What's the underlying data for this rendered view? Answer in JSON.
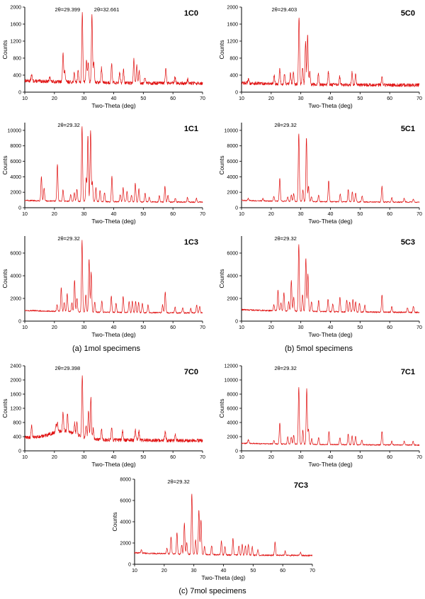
{
  "captions": {
    "a": "(a) 1mol specimens",
    "b": "(b) 5mol specimens",
    "c": "(c) 7mol specimens"
  },
  "colors": {
    "trace": "#e01010",
    "axis": "#000000"
  },
  "chart_data": [
    {
      "type": "line",
      "sample": "1C0",
      "xlabel": "Two-Theta (deg)",
      "ylabel": "Counts",
      "xlim": [
        10,
        70
      ],
      "ylim": [
        0,
        2000
      ],
      "yticks": [
        0,
        400,
        800,
        1200,
        1600,
        2000
      ],
      "xticks": [
        10,
        20,
        30,
        40,
        50,
        60,
        70
      ],
      "baseline": 200,
      "noise": 40,
      "annotations": [
        "2θ=29.399",
        "2θ=32.661"
      ],
      "peaks": [
        [
          12.3,
          150
        ],
        [
          18.5,
          120
        ],
        [
          22.9,
          700
        ],
        [
          23.5,
          250
        ],
        [
          26.7,
          200
        ],
        [
          28.0,
          300
        ],
        [
          29.4,
          1620
        ],
        [
          30.8,
          550
        ],
        [
          31.4,
          450
        ],
        [
          32.66,
          1600
        ],
        [
          33.3,
          500
        ],
        [
          35.9,
          350
        ],
        [
          39.3,
          450
        ],
        [
          42.0,
          250
        ],
        [
          43.3,
          300
        ],
        [
          46.8,
          550
        ],
        [
          47.8,
          400
        ],
        [
          48.6,
          300
        ],
        [
          50.5,
          150
        ],
        [
          57.6,
          350
        ],
        [
          60.7,
          150
        ],
        [
          65.0,
          100
        ]
      ]
    },
    {
      "type": "line",
      "sample": "5C0",
      "xlabel": "Two-Theta (deg)",
      "ylabel": "Counts",
      "xlim": [
        10,
        70
      ],
      "ylim": [
        0,
        2000
      ],
      "yticks": [
        0,
        400,
        800,
        1200,
        1600,
        2000
      ],
      "xticks": [
        10,
        20,
        30,
        40,
        50,
        60,
        70
      ],
      "baseline": 160,
      "noise": 40,
      "annotations": [
        "2θ=29.403"
      ],
      "peaks": [
        [
          12.3,
          100
        ],
        [
          21.0,
          200
        ],
        [
          22.9,
          350
        ],
        [
          24.5,
          250
        ],
        [
          26.5,
          250
        ],
        [
          27.5,
          300
        ],
        [
          29.4,
          1570
        ],
        [
          30.6,
          400
        ],
        [
          31.6,
          1000
        ],
        [
          32.3,
          1150
        ],
        [
          33.0,
          300
        ],
        [
          35.9,
          250
        ],
        [
          39.3,
          300
        ],
        [
          43.1,
          200
        ],
        [
          47.3,
          300
        ],
        [
          48.5,
          250
        ],
        [
          57.4,
          200
        ]
      ]
    },
    {
      "type": "line",
      "sample": "1C1",
      "xlabel": "Two-Theta (deg)",
      "ylabel": "Counts",
      "xlim": [
        10,
        70
      ],
      "ylim": [
        0,
        11000
      ],
      "yticks": [
        0,
        2000,
        4000,
        6000,
        8000,
        10000
      ],
      "xticks": [
        10,
        20,
        30,
        40,
        50,
        60,
        70
      ],
      "baseline": 700,
      "noise": 80,
      "annotations": [
        "2θ=29.32"
      ],
      "peaks": [
        [
          15.6,
          3100
        ],
        [
          16.5,
          1600
        ],
        [
          21.0,
          4800
        ],
        [
          22.9,
          1500
        ],
        [
          25.5,
          900
        ],
        [
          26.7,
          1100
        ],
        [
          27.6,
          1600
        ],
        [
          29.32,
          9700
        ],
        [
          30.7,
          3000
        ],
        [
          31.3,
          8600
        ],
        [
          32.2,
          9200
        ],
        [
          32.8,
          2500
        ],
        [
          34.0,
          1800
        ],
        [
          35.4,
          1500
        ],
        [
          36.9,
          1200
        ],
        [
          39.4,
          3300
        ],
        [
          42.2,
          900
        ],
        [
          43.2,
          1800
        ],
        [
          44.5,
          1400
        ],
        [
          46.0,
          900
        ],
        [
          47.3,
          2400
        ],
        [
          48.5,
          1700
        ],
        [
          50.6,
          1100
        ],
        [
          52.0,
          600
        ],
        [
          55.4,
          800
        ],
        [
          57.3,
          2000
        ],
        [
          58.3,
          900
        ],
        [
          60.8,
          500
        ],
        [
          64.9,
          600
        ],
        [
          67.9,
          500
        ]
      ]
    },
    {
      "type": "line",
      "sample": "5C1",
      "xlabel": "Two-Theta (deg)",
      "ylabel": "Counts",
      "xlim": [
        10,
        70
      ],
      "ylim": [
        0,
        11000
      ],
      "yticks": [
        0,
        2000,
        4000,
        6000,
        8000,
        10000
      ],
      "xticks": [
        10,
        20,
        30,
        40,
        50,
        60,
        70
      ],
      "baseline": 700,
      "noise": 70,
      "annotations": [
        "2θ=29.32"
      ],
      "peaks": [
        [
          12.3,
          300
        ],
        [
          17.2,
          300
        ],
        [
          20.9,
          600
        ],
        [
          22.9,
          3000
        ],
        [
          25.6,
          600
        ],
        [
          26.8,
          800
        ],
        [
          27.6,
          1000
        ],
        [
          29.32,
          8800
        ],
        [
          30.7,
          1500
        ],
        [
          31.9,
          8300
        ],
        [
          32.6,
          2000
        ],
        [
          33.6,
          600
        ],
        [
          36.0,
          800
        ],
        [
          39.4,
          2700
        ],
        [
          43.3,
          1000
        ],
        [
          46.0,
          1600
        ],
        [
          47.4,
          1300
        ],
        [
          48.5,
          1200
        ],
        [
          50.7,
          800
        ],
        [
          57.4,
          2000
        ],
        [
          60.7,
          600
        ],
        [
          64.9,
          500
        ],
        [
          68.0,
          400
        ]
      ]
    },
    {
      "type": "line",
      "sample": "1C3",
      "xlabel": "Two-Theta (deg)",
      "ylabel": "Counts",
      "xlim": [
        10,
        70
      ],
      "ylim": [
        0,
        7500
      ],
      "yticks": [
        0,
        2000,
        4000,
        6000
      ],
      "xticks": [
        10,
        20,
        30,
        40,
        50,
        60,
        70
      ],
      "baseline": 700,
      "noise": 60,
      "annotations": [
        "2θ=29.32"
      ],
      "peaks": [
        [
          20.9,
          600
        ],
        [
          22.3,
          2100
        ],
        [
          23.3,
          800
        ],
        [
          24.3,
          1600
        ],
        [
          25.9,
          800
        ],
        [
          26.8,
          2800
        ],
        [
          27.6,
          1200
        ],
        [
          29.32,
          6300
        ],
        [
          30.6,
          1500
        ],
        [
          31.7,
          4700
        ],
        [
          32.4,
          3500
        ],
        [
          33.6,
          900
        ],
        [
          36.0,
          1000
        ],
        [
          39.2,
          1400
        ],
        [
          40.8,
          800
        ],
        [
          43.2,
          1400
        ],
        [
          45.2,
          1000
        ],
        [
          46.3,
          1000
        ],
        [
          47.4,
          1000
        ],
        [
          48.4,
          900
        ],
        [
          49.7,
          800
        ],
        [
          51.6,
          700
        ],
        [
          56.5,
          700
        ],
        [
          57.4,
          1800
        ],
        [
          60.7,
          500
        ],
        [
          63.3,
          400
        ],
        [
          66.0,
          400
        ],
        [
          68.0,
          700
        ],
        [
          69.0,
          600
        ]
      ]
    },
    {
      "type": "line",
      "sample": "5C3",
      "xlabel": "Two-Theta (deg)",
      "ylabel": "Counts",
      "xlim": [
        10,
        70
      ],
      "ylim": [
        0,
        7500
      ],
      "yticks": [
        0,
        2000,
        4000,
        6000
      ],
      "xticks": [
        10,
        20,
        30,
        40,
        50,
        60,
        70
      ],
      "baseline": 750,
      "noise": 60,
      "annotations": [
        "2θ=29.32"
      ],
      "peaks": [
        [
          20.9,
          500
        ],
        [
          22.3,
          1800
        ],
        [
          23.3,
          700
        ],
        [
          24.3,
          1600
        ],
        [
          25.9,
          800
        ],
        [
          26.8,
          2700
        ],
        [
          27.6,
          1200
        ],
        [
          29.32,
          5900
        ],
        [
          30.6,
          1500
        ],
        [
          31.7,
          4700
        ],
        [
          32.4,
          3300
        ],
        [
          33.6,
          900
        ],
        [
          36.0,
          1000
        ],
        [
          39.2,
          1100
        ],
        [
          40.8,
          700
        ],
        [
          43.2,
          1300
        ],
        [
          45.5,
          1100
        ],
        [
          46.5,
          900
        ],
        [
          47.6,
          1100
        ],
        [
          48.5,
          900
        ],
        [
          49.8,
          800
        ],
        [
          51.6,
          600
        ],
        [
          57.4,
          1500
        ],
        [
          60.7,
          500
        ],
        [
          66.0,
          400
        ],
        [
          68.0,
          500
        ]
      ]
    },
    {
      "type": "line",
      "sample": "7C0",
      "xlabel": "Two-Theta (deg)",
      "ylabel": "Counts",
      "xlim": [
        10,
        70
      ],
      "ylim": [
        0,
        2400
      ],
      "yticks": [
        0,
        400,
        800,
        1200,
        1600,
        2000,
        2400
      ],
      "xticks": [
        10,
        20,
        30,
        40,
        50,
        60,
        70
      ],
      "baseline": 280,
      "noise": 50,
      "hump": [
        23,
        220
      ],
      "annotations": [
        "2θ=29.398"
      ],
      "peaks": [
        [
          12.3,
          350
        ],
        [
          20.5,
          200
        ],
        [
          21.0,
          250
        ],
        [
          22.9,
          550
        ],
        [
          24.4,
          500
        ],
        [
          26.8,
          300
        ],
        [
          27.6,
          350
        ],
        [
          29.398,
          1750
        ],
        [
          30.7,
          350
        ],
        [
          31.5,
          800
        ],
        [
          32.3,
          1150
        ],
        [
          33.1,
          300
        ],
        [
          35.9,
          300
        ],
        [
          39.3,
          350
        ],
        [
          43.0,
          250
        ],
        [
          47.3,
          300
        ],
        [
          48.5,
          250
        ],
        [
          57.4,
          250
        ],
        [
          60.8,
          150
        ]
      ]
    },
    {
      "type": "line",
      "sample": "7C1",
      "xlabel": "Two-Theta (deg)",
      "ylabel": "Counts",
      "xlim": [
        10,
        70
      ],
      "ylim": [
        0,
        12000
      ],
      "yticks": [
        0,
        2000,
        4000,
        6000,
        8000,
        10000,
        12000
      ],
      "xticks": [
        10,
        20,
        30,
        40,
        50,
        60,
        70
      ],
      "baseline": 800,
      "noise": 80,
      "annotations": [
        "2θ=29.32"
      ],
      "peaks": [
        [
          12.3,
          500
        ],
        [
          20.9,
          500
        ],
        [
          22.9,
          3000
        ],
        [
          25.6,
          1000
        ],
        [
          26.8,
          1000
        ],
        [
          27.6,
          1300
        ],
        [
          29.32,
          8000
        ],
        [
          30.7,
          2000
        ],
        [
          32.0,
          7800
        ],
        [
          32.6,
          2200
        ],
        [
          33.7,
          800
        ],
        [
          36.0,
          1000
        ],
        [
          39.5,
          1800
        ],
        [
          43.2,
          1000
        ],
        [
          46.0,
          1500
        ],
        [
          47.3,
          1300
        ],
        [
          48.5,
          1200
        ],
        [
          50.6,
          700
        ],
        [
          57.4,
          1900
        ],
        [
          60.7,
          500
        ],
        [
          64.9,
          500
        ],
        [
          67.9,
          500
        ]
      ]
    },
    {
      "type": "line",
      "sample": "7C3",
      "xlabel": "Two-Theta (deg)",
      "ylabel": "Counts",
      "xlim": [
        10,
        70
      ],
      "ylim": [
        0,
        8000
      ],
      "yticks": [
        0,
        2000,
        4000,
        6000,
        8000
      ],
      "xticks": [
        10,
        20,
        30,
        40,
        50,
        60,
        70
      ],
      "baseline": 800,
      "noise": 70,
      "annotations": [
        "2θ=29.32"
      ],
      "peaks": [
        [
          12.3,
          300
        ],
        [
          20.9,
          500
        ],
        [
          22.3,
          1600
        ],
        [
          24.3,
          2000
        ],
        [
          25.9,
          900
        ],
        [
          26.8,
          2900
        ],
        [
          27.6,
          1100
        ],
        [
          29.32,
          5700
        ],
        [
          30.6,
          1400
        ],
        [
          31.7,
          4200
        ],
        [
          32.4,
          3300
        ],
        [
          33.6,
          800
        ],
        [
          36.0,
          900
        ],
        [
          39.3,
          1300
        ],
        [
          40.5,
          800
        ],
        [
          43.2,
          1500
        ],
        [
          45.2,
          900
        ],
        [
          46.3,
          1000
        ],
        [
          47.4,
          900
        ],
        [
          48.4,
          1000
        ],
        [
          49.7,
          800
        ],
        [
          51.6,
          500
        ],
        [
          57.4,
          1200
        ],
        [
          60.8,
          400
        ],
        [
          66.0,
          300
        ]
      ]
    }
  ]
}
